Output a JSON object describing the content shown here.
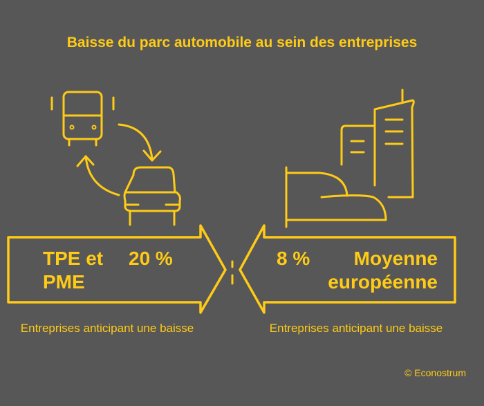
{
  "title": "Baisse du parc automobile au sein des entreprises",
  "left": {
    "label": "TPE et PME",
    "label_line1": "TPE et",
    "label_line2": "PME",
    "value": "20 %",
    "caption": "Entreprises anticipant une baisse"
  },
  "right": {
    "label": "Moyenne européenne",
    "label_line1": "Moyenne",
    "label_line2": "européenne",
    "value": "8 %",
    "caption": "Entreprises anticipant une baisse"
  },
  "credit": "© Econostrum",
  "colors": {
    "background": "#575757",
    "accent": "#FFCB16"
  },
  "icons": [
    "bus-car-exchange-icon",
    "office-buildings-icon"
  ]
}
